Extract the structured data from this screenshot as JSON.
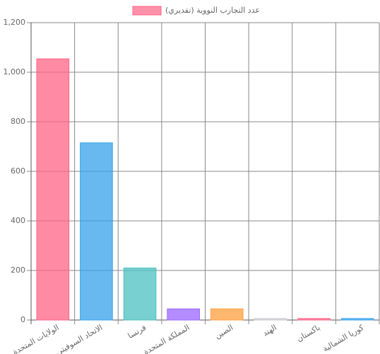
{
  "chart_data": {
    "type": "bar",
    "categories": [
      "الولايات المتحدة",
      "الاتحاد السوفيتي",
      "فرنسا",
      "المملكة المتحدة",
      "الصين",
      "الهند",
      "باكستان",
      "كوريا الشمالية"
    ],
    "series": [
      {
        "name": "عدد التجارب النووية (تقديري)",
        "colors": [
          "#ff6384",
          "#36a2eb",
          "#4bc0c0",
          "#9966ff",
          "#ff9f40",
          "#c9cbcf",
          "#ff6384",
          "#36a2eb"
        ],
        "values": [
          1054,
          715,
          210,
          45,
          45,
          6,
          6,
          6
        ]
      }
    ],
    "ylim": [
      0,
      1200
    ],
    "yticks": [
      0,
      200,
      400,
      600,
      800,
      {
        "value": 1000,
        "label": "1,000"
      },
      {
        "value": 1200,
        "label": "1,200"
      }
    ],
    "grid": true,
    "legend": "top"
  }
}
